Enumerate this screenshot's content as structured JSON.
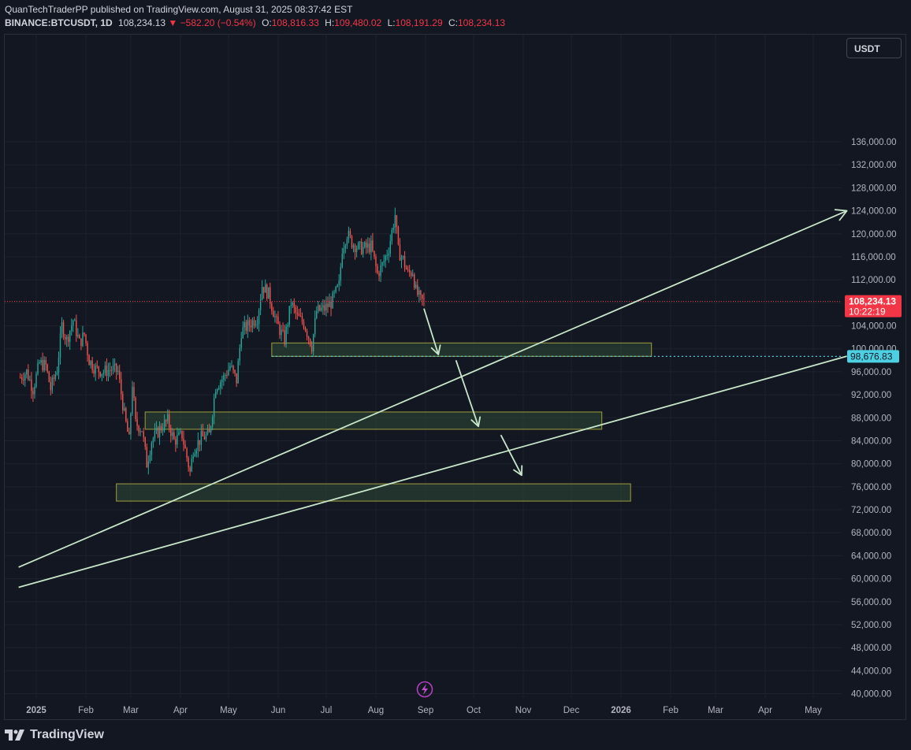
{
  "header": {
    "line1": "QuanTechTraderPP published on TradingView.com, August 31, 2025 08:37:42 EST",
    "symbol": "BINANCE:BTCUSDT, 1D",
    "last": "108,234.13",
    "change": "−582.20 (−0.54%)",
    "open_label": "O:",
    "open": "108,816.33",
    "high_label": "H:",
    "high": "109,480.02",
    "low_label": "L:",
    "low": "108,191.29",
    "close_label": "C:",
    "close": "108,234.13"
  },
  "currency": "USDT",
  "footer": {
    "brand": "TradingView",
    "logo_icon": "tradingview-logo-icon"
  },
  "colors": {
    "background": "#131722",
    "grid": "#1e222d",
    "axis_text": "#b2b5be",
    "up": "#26a69a",
    "down": "#ef5350",
    "drawing": "#c8e6c9",
    "zone_fill": "#2e4a35",
    "zone_border": "#8a8a3a",
    "price_badge": "#f23645",
    "level_badge": "#4dd0e1"
  },
  "chart_data": {
    "type": "candlestick",
    "y_axis": {
      "min": 40000,
      "max": 136000,
      "ticks": [
        40000,
        44000,
        48000,
        52000,
        56000,
        60000,
        64000,
        68000,
        72000,
        76000,
        80000,
        84000,
        88000,
        92000,
        96000,
        100000,
        104000,
        108000,
        112000,
        116000,
        120000,
        124000,
        128000,
        132000,
        136000
      ],
      "tick_labels": [
        "40,000.00",
        "44,000.00",
        "48,000.00",
        "52,000.00",
        "56,000.00",
        "60,000.00",
        "64,000.00",
        "68,000.00",
        "72,000.00",
        "76,000.00",
        "80,000.00",
        "84,000.00",
        "88,000.00",
        "92,000.00",
        "96,000.00",
        "100,000.00",
        "104,000.00",
        "108,000.00",
        "112,000.00",
        "116,000.00",
        "120,000.00",
        "124,000.00",
        "128,000.00",
        "132,000.00",
        "136,000.00"
      ]
    },
    "x_axis": {
      "labels": [
        {
          "text": "2025",
          "date": "2025-01-01"
        },
        {
          "text": "Feb",
          "date": "2025-02-01"
        },
        {
          "text": "Mar",
          "date": "2025-03-01"
        },
        {
          "text": "Apr",
          "date": "2025-04-01"
        },
        {
          "text": "May",
          "date": "2025-05-01"
        },
        {
          "text": "Jun",
          "date": "2025-06-01"
        },
        {
          "text": "Jul",
          "date": "2025-07-01"
        },
        {
          "text": "Aug",
          "date": "2025-08-01"
        },
        {
          "text": "Sep",
          "date": "2025-09-01"
        },
        {
          "text": "Oct",
          "date": "2025-10-01"
        },
        {
          "text": "Nov",
          "date": "2025-11-01"
        },
        {
          "text": "Dec",
          "date": "2025-12-01"
        },
        {
          "text": "2026",
          "date": "2026-01-01"
        },
        {
          "text": "Feb",
          "date": "2026-02-01"
        },
        {
          "text": "Mar",
          "date": "2026-03-01"
        },
        {
          "text": "Apr",
          "date": "2026-04-01"
        },
        {
          "text": "May",
          "date": "2026-05-01"
        }
      ]
    },
    "close_path": [
      [
        "2024-12-22",
        95000
      ],
      [
        "2024-12-26",
        96000
      ],
      [
        "2024-12-30",
        93000
      ],
      [
        "2025-01-03",
        97500
      ],
      [
        "2025-01-07",
        97000
      ],
      [
        "2025-01-10",
        93000
      ],
      [
        "2025-01-14",
        96500
      ],
      [
        "2025-01-17",
        104000
      ],
      [
        "2025-01-20",
        101500
      ],
      [
        "2025-01-24",
        105000
      ],
      [
        "2025-01-28",
        101000
      ],
      [
        "2025-01-31",
        102500
      ],
      [
        "2025-02-03",
        98000
      ],
      [
        "2025-02-07",
        96500
      ],
      [
        "2025-02-12",
        96000
      ],
      [
        "2025-02-17",
        96500
      ],
      [
        "2025-02-21",
        96000
      ],
      [
        "2025-02-25",
        88500
      ],
      [
        "2025-02-28",
        84000
      ],
      [
        "2025-03-02",
        94000
      ],
      [
        "2025-03-04",
        87000
      ],
      [
        "2025-03-08",
        86000
      ],
      [
        "2025-03-11",
        80000
      ],
      [
        "2025-03-14",
        84000
      ],
      [
        "2025-03-19",
        86000
      ],
      [
        "2025-03-24",
        87500
      ],
      [
        "2025-03-28",
        84000
      ],
      [
        "2025-04-02",
        85000
      ],
      [
        "2025-04-07",
        78500
      ],
      [
        "2025-04-09",
        82500
      ],
      [
        "2025-04-14",
        84500
      ],
      [
        "2025-04-19",
        85000
      ],
      [
        "2025-04-23",
        93500
      ],
      [
        "2025-04-28",
        95000
      ],
      [
        "2025-05-02",
        97000
      ],
      [
        "2025-05-06",
        94500
      ],
      [
        "2025-05-09",
        103000
      ],
      [
        "2025-05-13",
        104000
      ],
      [
        "2025-05-19",
        105500
      ],
      [
        "2025-05-22",
        111000
      ],
      [
        "2025-05-26",
        109500
      ],
      [
        "2025-05-31",
        104500
      ],
      [
        "2025-06-05",
        101500
      ],
      [
        "2025-06-09",
        108000
      ],
      [
        "2025-06-13",
        105500
      ],
      [
        "2025-06-17",
        104500
      ],
      [
        "2025-06-22",
        100500
      ],
      [
        "2025-06-25",
        106500
      ],
      [
        "2025-06-30",
        107000
      ],
      [
        "2025-07-04",
        108000
      ],
      [
        "2025-07-09",
        111000
      ],
      [
        "2025-07-11",
        117500
      ],
      [
        "2025-07-14",
        120000
      ],
      [
        "2025-07-17",
        118500
      ],
      [
        "2025-07-21",
        117500
      ],
      [
        "2025-07-25",
        117500
      ],
      [
        "2025-07-29",
        117800
      ],
      [
        "2025-08-02",
        113000
      ],
      [
        "2025-08-05",
        114500
      ],
      [
        "2025-08-09",
        117500
      ],
      [
        "2025-08-13",
        123300
      ],
      [
        "2025-08-15",
        117000
      ],
      [
        "2025-08-18",
        115500
      ],
      [
        "2025-08-21",
        113000
      ],
      [
        "2025-08-24",
        113500
      ],
      [
        "2025-08-26",
        110000
      ],
      [
        "2025-08-29",
        108400
      ],
      [
        "2025-08-31",
        108234
      ]
    ],
    "current_price": {
      "value": 108234.13,
      "label": "108,234.13",
      "countdown": "10:22:19"
    },
    "level": {
      "value": 98676.83,
      "label": "98,676.83"
    },
    "zones": [
      {
        "from": "2025-05-28",
        "to": "2026-01-20",
        "low": 98676,
        "high": 101000
      },
      {
        "from": "2025-03-10",
        "to": "2025-12-20",
        "low": 86000,
        "high": 89000
      },
      {
        "from": "2025-02-20",
        "to": "2025-12-38",
        "low": 73500,
        "high": 76500
      }
    ],
    "trend_lines": [
      {
        "from": [
          "2024-12-21",
          62000
        ],
        "to": [
          "2026-05-22",
          124000
        ],
        "arrow": true
      },
      {
        "from": [
          "2024-12-21",
          58500
        ],
        "to": [
          "2026-05-22",
          98700
        ],
        "arrow": false
      }
    ],
    "arrows": [
      {
        "from": [
          "2025-08-31",
          107000
        ],
        "to": [
          "2025-09-09",
          99000
        ]
      },
      {
        "from": [
          "2025-09-20",
          98000
        ],
        "to": [
          "2025-10-04",
          86500
        ]
      },
      {
        "from": [
          "2025-10-18",
          85000
        ],
        "to": [
          "2025-10-31",
          78000
        ]
      }
    ]
  }
}
